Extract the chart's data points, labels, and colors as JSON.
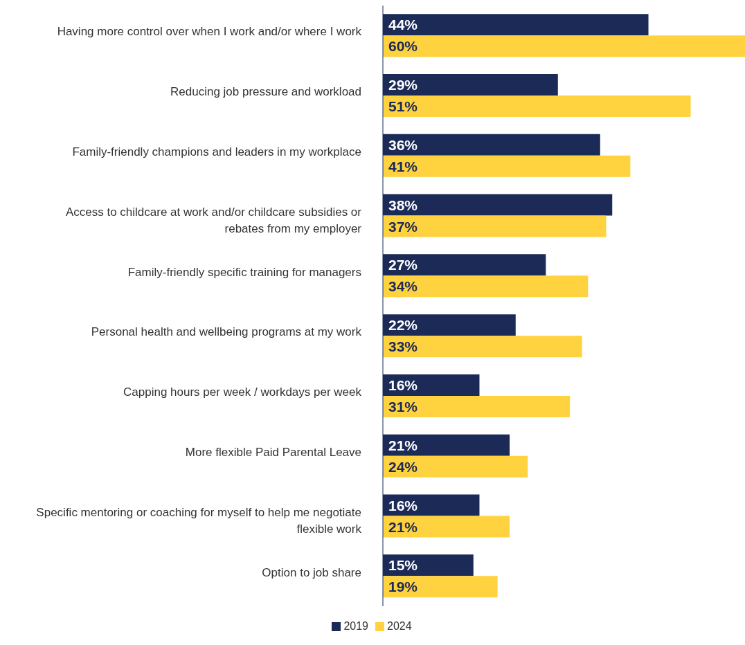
{
  "chart_data": {
    "type": "bar",
    "orientation": "horizontal",
    "categories": [
      "Having more control over when I work and/or where I work",
      "Reducing job pressure and workload",
      "Family-friendly champions and leaders in my workplace",
      "Access to childcare at work and/or childcare subsidies or rebates from my employer",
      "Family-friendly specific training for managers",
      "Personal health and wellbeing programs at my work",
      "Capping hours per week / workdays per week",
      "More flexible Paid Parental Leave",
      "Specific mentoring or coaching for myself to help me negotiate flexible work",
      "Option to job share"
    ],
    "series": [
      {
        "name": "2019",
        "color": "#1b2a57",
        "values": [
          44,
          29,
          36,
          38,
          27,
          22,
          16,
          21,
          16,
          15
        ],
        "value_labels": [
          "44%",
          "29%",
          "36%",
          "38%",
          "27%",
          "22%",
          "16%",
          "21%",
          "16%",
          "15%"
        ]
      },
      {
        "name": "2024",
        "color": "#ffd23f",
        "values": [
          60,
          51,
          41,
          37,
          34,
          33,
          31,
          24,
          21,
          19
        ],
        "value_labels": [
          "60%",
          "51%",
          "41%",
          "37%",
          "34%",
          "33%",
          "31%",
          "24%",
          "21%",
          "19%"
        ]
      }
    ],
    "legend": "bottom",
    "grid": false
  }
}
